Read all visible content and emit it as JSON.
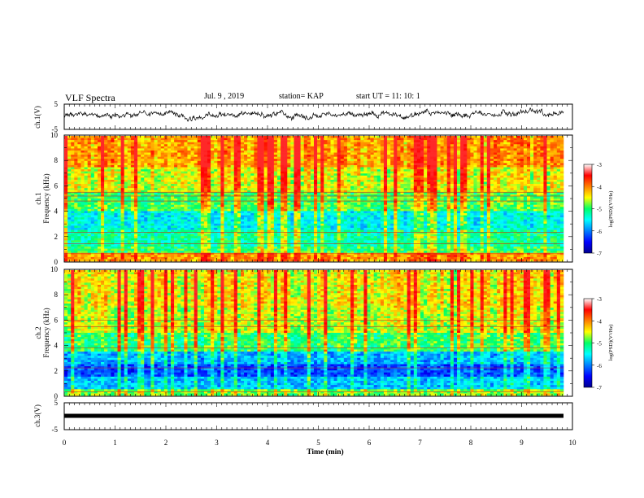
{
  "header": {
    "title": "VLF Spectra",
    "date": "Jul. 9 , 2019",
    "station": "station= KAP",
    "start": "start UT = 11: 10: 1"
  },
  "chart_data": [
    {
      "type": "line",
      "panel": "ch1-waveform",
      "ylabel": "ch.1(V)",
      "ylim": [
        -5,
        5
      ],
      "yticks": [
        "5",
        "-5"
      ],
      "xlim": [
        0,
        10
      ]
    },
    {
      "type": "heatmap",
      "panel": "ch1-spectrogram",
      "ylabel": "ch.1\nFrequency (kHz)",
      "ylim": [
        0,
        10
      ],
      "yticks": [
        "0",
        "2",
        "4",
        "6",
        "8",
        "10"
      ],
      "xlim": [
        0,
        9.8
      ],
      "colorbar": {
        "label": "log(PSD)(V²/Hz)",
        "ticks": [
          "-3",
          "-4",
          "-5",
          "-6",
          "-7"
        ],
        "range": [
          -7,
          -3
        ]
      }
    },
    {
      "type": "heatmap",
      "panel": "ch2-spectrogram",
      "ylabel": "ch.2\nFrequency (kHz)",
      "ylim": [
        0,
        10
      ],
      "yticks": [
        "0",
        "2",
        "4",
        "6",
        "8",
        "10"
      ],
      "xlim": [
        0,
        9.8
      ],
      "colorbar": {
        "label": "log(PSD)(V²/Hz)",
        "ticks": [
          "-3",
          "-4",
          "-5",
          "-6",
          "-7"
        ],
        "range": [
          -7,
          -3
        ]
      }
    },
    {
      "type": "line",
      "panel": "ch3-waveform",
      "ylabel": "ch.3(V)",
      "ylim": [
        -5,
        5
      ],
      "yticks": [
        "5",
        "-5"
      ],
      "constant_value": 0
    }
  ],
  "xaxis": {
    "label": "Time (min)",
    "ticks": [
      "0",
      "1",
      "2",
      "3",
      "4",
      "5",
      "6",
      "7",
      "8",
      "9",
      "10"
    ],
    "range": [
      0,
      10
    ]
  }
}
